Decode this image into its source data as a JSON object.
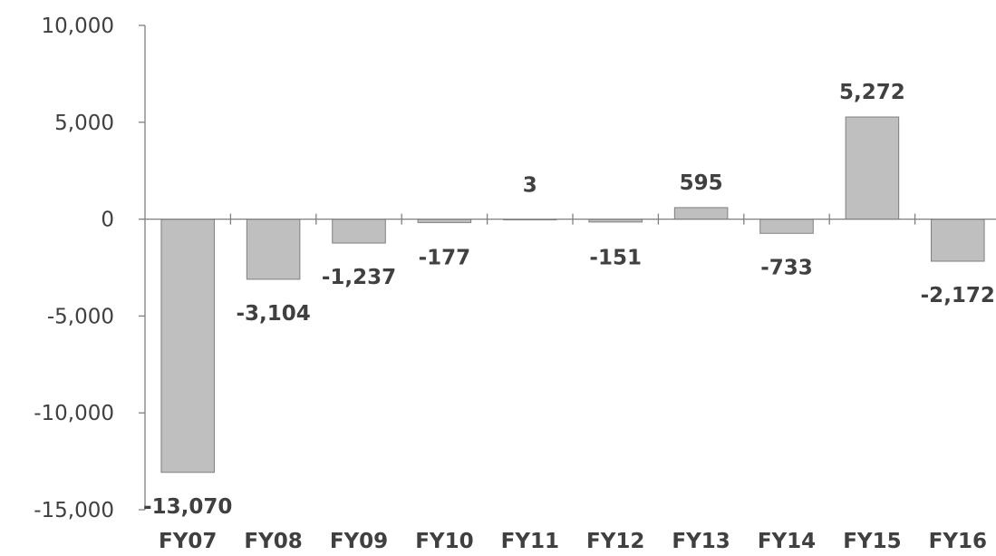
{
  "chart_data": {
    "type": "bar",
    "categories": [
      "FY07",
      "FY08",
      "FY09",
      "FY10",
      "FY11",
      "FY12",
      "FY13",
      "FY14",
      "FY15",
      "FY16"
    ],
    "values": [
      -13070,
      -3104,
      -1237,
      -177,
      3,
      -151,
      595,
      -733,
      5272,
      -2172
    ],
    "data_labels": [
      "-13,070",
      "-3,104",
      "-1,237",
      "-177",
      "3",
      "-151",
      "595",
      "-733",
      "5,272",
      "-2,172"
    ],
    "y_ticks": [
      10000,
      5000,
      0,
      -5000,
      -10000,
      -15000
    ],
    "y_tick_labels": [
      "10,000",
      "5,000",
      "0",
      "-5,000",
      "-10,000",
      "-15,000"
    ],
    "ylim": [
      -15000,
      10000
    ],
    "grid": false,
    "legend": "none",
    "colors": {
      "bar_fill": "#bfbfbf",
      "bar_stroke": "#7f7f7f",
      "axis": "#7f7f7f",
      "text": "#404040"
    }
  }
}
